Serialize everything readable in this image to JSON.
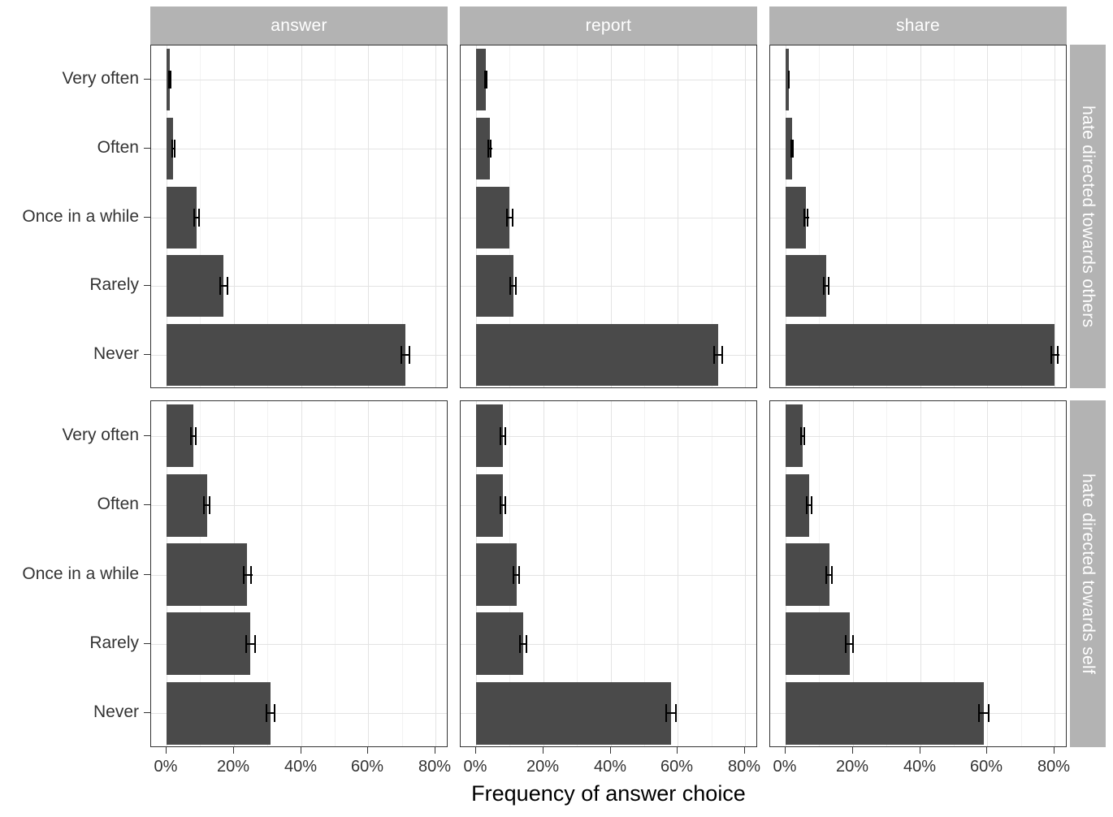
{
  "chart_data": {
    "type": "bar",
    "orientation": "horizontal",
    "title": "",
    "xlabel": "Frequency of answer choice",
    "ylabel": "",
    "categories": [
      "Very often",
      "Often",
      "Once in a while",
      "Rarely",
      "Never"
    ],
    "col_facets": [
      "answer",
      "report",
      "share"
    ],
    "row_facets": [
      "hate directed towards others",
      "hate directed towards self"
    ],
    "x_ticks": [
      "0%",
      "20%",
      "40%",
      "60%",
      "80%"
    ],
    "x_tick_values": [
      0,
      20,
      40,
      60,
      80
    ],
    "x_minor_values": [
      10,
      30,
      50,
      70
    ],
    "xlim": [
      0,
      80
    ],
    "grid": true,
    "legend": "none",
    "error_bars": true,
    "panels": [
      {
        "row_facet": "hate directed towards others",
        "col_facet": "answer",
        "values": [
          1,
          2,
          9,
          17,
          71
        ],
        "errors": [
          0.4,
          0.6,
          1.0,
          1.3,
          1.5
        ]
      },
      {
        "row_facet": "hate directed towards others",
        "col_facet": "report",
        "values": [
          3,
          4,
          10,
          11,
          72
        ],
        "errors": [
          0.5,
          0.7,
          1.0,
          1.0,
          1.5
        ]
      },
      {
        "row_facet": "hate directed towards others",
        "col_facet": "share",
        "values": [
          1,
          2,
          6,
          12,
          80
        ],
        "errors": [
          0.3,
          0.5,
          0.8,
          1.0,
          1.3
        ]
      },
      {
        "row_facet": "hate directed towards self",
        "col_facet": "answer",
        "values": [
          8,
          12,
          24,
          25,
          31
        ],
        "errors": [
          0.9,
          1.1,
          1.4,
          1.5,
          1.5
        ]
      },
      {
        "row_facet": "hate directed towards self",
        "col_facet": "report",
        "values": [
          8,
          8,
          12,
          14,
          58
        ],
        "errors": [
          0.9,
          0.9,
          1.1,
          1.2,
          1.6
        ]
      },
      {
        "row_facet": "hate directed towards self",
        "col_facet": "share",
        "values": [
          5,
          7,
          13,
          19,
          59
        ],
        "errors": [
          0.7,
          0.9,
          1.1,
          1.3,
          1.6
        ]
      }
    ],
    "colors": {
      "bar": "#4a4a4a",
      "error_bar": "#000000",
      "strip_bg": "#b3b3b3",
      "strip_text": "#ffffff",
      "panel_border": "#333333",
      "grid_major": "#e3e3e3",
      "grid_minor": "#f2f2f2",
      "axis_text": "#333333"
    }
  }
}
